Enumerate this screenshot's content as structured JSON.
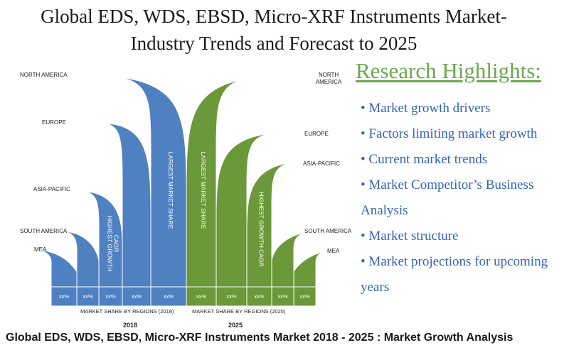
{
  "title_line1": "Global EDS, WDS, EBSD, Micro-XRF Instruments Market-",
  "title_line2": "Industry Trends and Forecast to 2025",
  "highlights": {
    "title": "Research Highlights:",
    "items": [
      "• Market growth drivers",
      "• Factors limiting market growth",
      "• Current market trends",
      "• Market Competitor’s Business",
      "Analysis",
      "• Market structure",
      "• Market projections for upcoming",
      "years"
    ]
  },
  "footer": "Global EDS, WDS, EBSD, Micro-XRF Instruments Market 2018 - 2025 : Market Growth Analysis",
  "colors": {
    "blue": "#4f81c2",
    "green": "#6b9838",
    "highlight_title": "#6aa84f",
    "highlight_text": "#3465b8"
  },
  "chart_data": {
    "type": "area",
    "groups": [
      {
        "year": "2018",
        "axis_label": "MARKET SHARE BY REGIONS (2018)",
        "color": "#4f81c2",
        "regions": [
          "MEA",
          "SOUTH AMERICA",
          "ASIA-PACIFIC",
          "EUROPE",
          "NORTH AMERICA"
        ],
        "cell_values": [
          "xx%",
          "xx%",
          "xx%",
          "xx%",
          "xx%"
        ],
        "annotations": [
          {
            "region": "ASIA-PACIFIC",
            "text": "HIGHEST GROWTH CAGR"
          },
          {
            "region": "NORTH AMERICA",
            "text": "LARGEST MARKET SHARE"
          }
        ]
      },
      {
        "year": "2025",
        "axis_label": "MARKET SHARE BY REGIONS (2025)",
        "color": "#6b9838",
        "regions": [
          "NORTH AMERICA",
          "EUROPE",
          "ASIA-PACIFIC",
          "SOUTH AMERICA",
          "MEA"
        ],
        "cell_values": [
          "xx%",
          "xx%",
          "xx%",
          "xx%",
          "xx%"
        ],
        "annotations": [
          {
            "region": "NORTH AMERICA",
            "text": "LARGEST MARKET SHARE"
          },
          {
            "region": "ASIA-PACIFIC",
            "text": "HIGHEST GROWTH CAGR"
          }
        ]
      }
    ]
  }
}
